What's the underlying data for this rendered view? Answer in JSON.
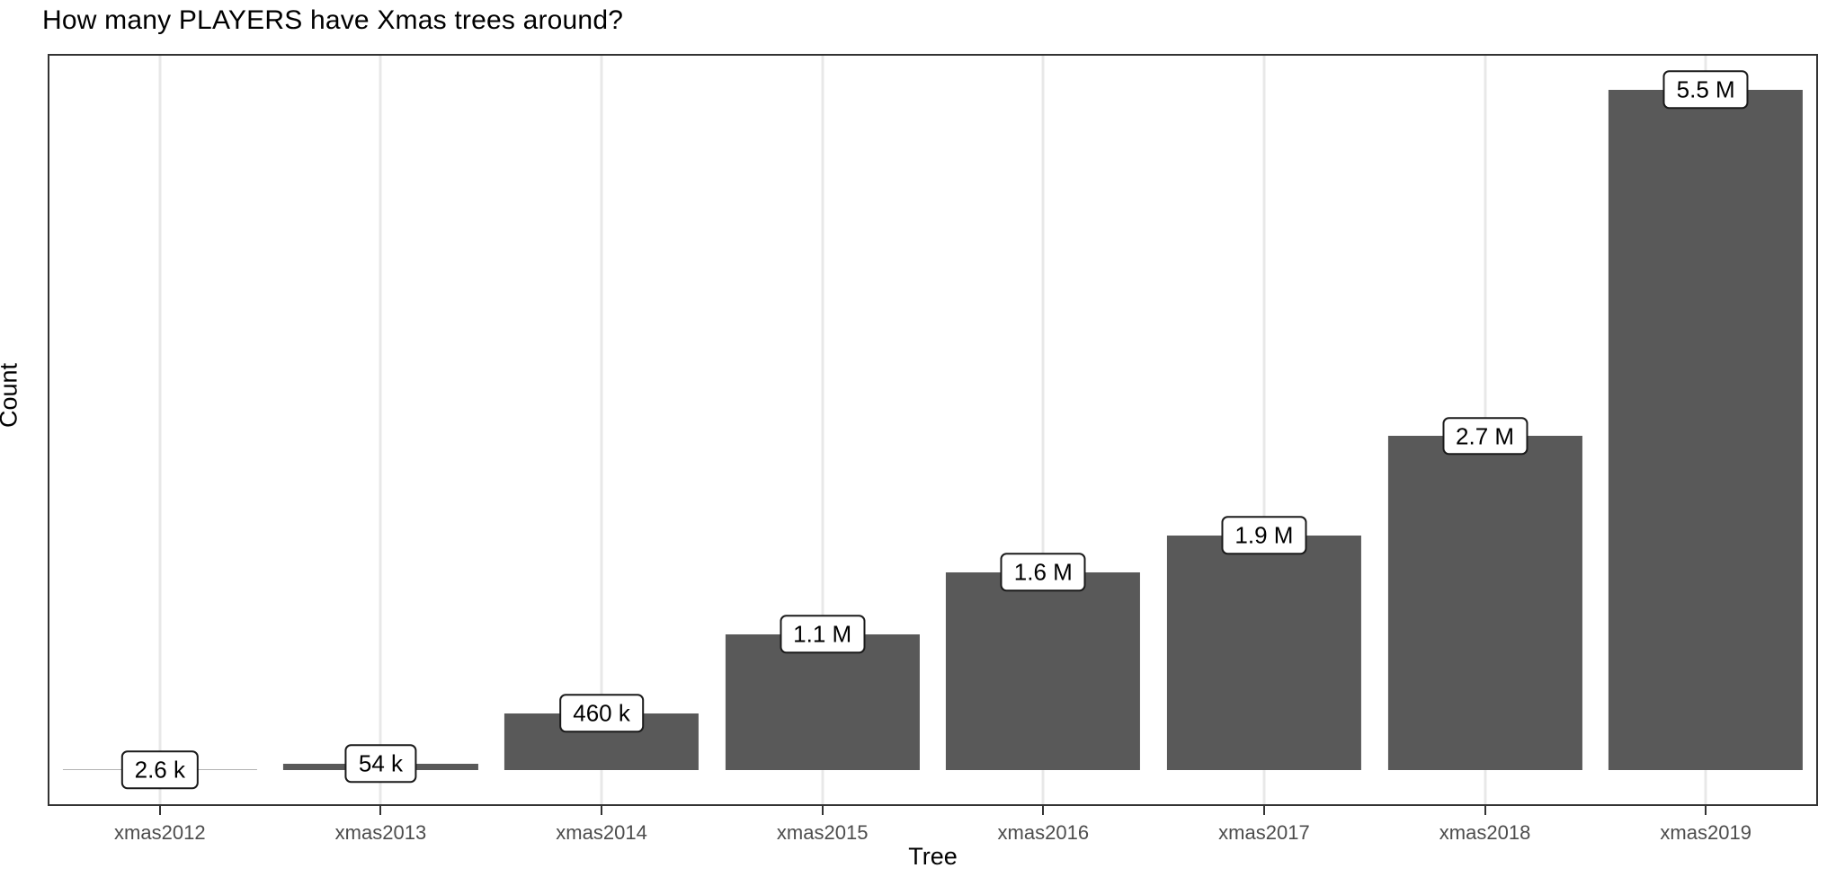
{
  "chart_data": {
    "type": "bar",
    "title": "How many PLAYERS have Xmas trees around?",
    "xlabel": "Tree",
    "ylabel": "Count",
    "categories": [
      "xmas2012",
      "xmas2013",
      "xmas2014",
      "xmas2015",
      "xmas2016",
      "xmas2017",
      "xmas2018",
      "xmas2019"
    ],
    "values": [
      2600,
      54000,
      460000,
      1100000,
      1600000,
      1900000,
      2700000,
      5500000
    ],
    "bar_labels": [
      "2.6 k",
      "54 k",
      "460 k",
      "1.1 M",
      "1.6 M",
      "1.9 M",
      "2.7 M",
      "5.5 M"
    ],
    "y_axis": {
      "min": 0,
      "max": 5500000,
      "expansion_mult": 0.05,
      "tick_labels_shown": false
    },
    "grid": {
      "vertical_major": true,
      "horizontal_major": false
    },
    "legend": "none",
    "style": {
      "bar_color": "#595959",
      "grid_color": "#E8E8E8",
      "panel_border_color": "#333333",
      "axis_text_color": "#4D4D4D",
      "title_color": "#000000",
      "label_box_bg": "#FFFFFF",
      "label_box_border": "#1A1A1A",
      "background": "#FFFFFF"
    }
  }
}
